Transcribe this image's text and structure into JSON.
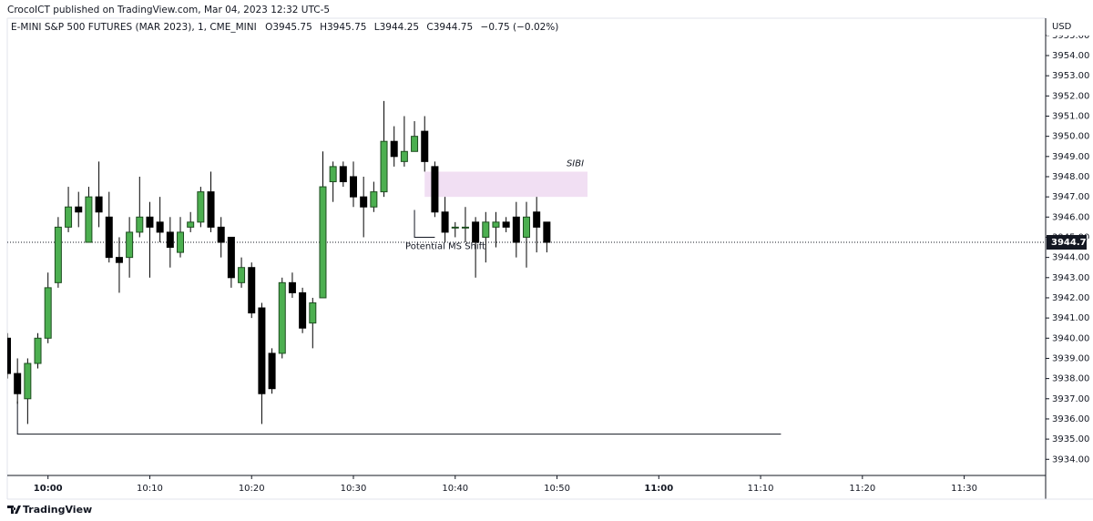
{
  "header": {
    "published": "CrocoICT published on TradingView.com, Mar 04, 2023 12:32 UTC-5",
    "symbol": "E-MINI S&P 500 FUTURES (MAR 2023), 1, CME_MINI",
    "ohlc_labels": [
      "O3945.75",
      "H3945.75",
      "L3944.25",
      "C3944.75",
      "−0.75 (−0.02%)"
    ]
  },
  "footer": {
    "brand": "TradingView"
  },
  "chart_data": {
    "type": "candlestick",
    "currency": "USD",
    "x": [
      "09:56",
      "09:57",
      "09:58",
      "09:59",
      "10:00",
      "10:01",
      "10:02",
      "10:03",
      "10:04",
      "10:05",
      "10:06",
      "10:07",
      "10:08",
      "10:09",
      "10:10",
      "10:11",
      "10:12",
      "10:13",
      "10:14",
      "10:15",
      "10:16",
      "10:17",
      "10:18",
      "10:19",
      "10:20",
      "10:21",
      "10:22",
      "10:23",
      "10:24",
      "10:25",
      "10:26",
      "10:27",
      "10:28",
      "10:29",
      "10:30",
      "10:31",
      "10:32",
      "10:33",
      "10:34",
      "10:35",
      "10:36",
      "10:37",
      "10:38",
      "10:39",
      "10:40",
      "10:41",
      "10:42",
      "10:43",
      "10:44",
      "10:45",
      "10:46",
      "10:47",
      "10:48",
      "10:49"
    ],
    "open": [
      3940.0,
      3938.25,
      3937.0,
      3938.75,
      3940.0,
      3942.75,
      3945.5,
      3946.5,
      3944.75,
      3947.0,
      3946.0,
      3944.0,
      3944.0,
      3945.25,
      3946.0,
      3945.75,
      3945.25,
      3944.25,
      3945.5,
      3945.75,
      3947.25,
      3945.5,
      3945.0,
      3942.75,
      3943.5,
      3941.5,
      3939.25,
      3939.25,
      3942.75,
      3942.25,
      3940.75,
      3942.0,
      3947.75,
      3948.5,
      3948.0,
      3947.0,
      3946.5,
      3947.25,
      3949.75,
      3948.75,
      3949.25,
      3950.25,
      3948.5,
      3946.25,
      3945.5,
      3945.5,
      3945.75,
      3945.0,
      3945.5,
      3945.75,
      3946.0,
      3945.0,
      3946.25,
      3945.75
    ],
    "high": [
      3940.25,
      3939.0,
      3939.0,
      3940.25,
      3943.25,
      3946.0,
      3947.5,
      3947.25,
      3947.5,
      3948.75,
      3947.25,
      3945.0,
      3946.0,
      3948.0,
      3946.75,
      3947.0,
      3946.0,
      3946.0,
      3946.25,
      3947.5,
      3948.25,
      3946.0,
      3945.0,
      3944.0,
      3943.75,
      3941.75,
      3939.5,
      3943.0,
      3943.25,
      3942.5,
      3942.0,
      3949.25,
      3948.75,
      3948.75,
      3948.75,
      3948.0,
      3947.75,
      3951.75,
      3950.5,
      3951.0,
      3950.75,
      3951.0,
      3948.75,
      3947.0,
      3945.75,
      3946.5,
      3946.0,
      3946.25,
      3946.25,
      3946.0,
      3946.75,
      3946.75,
      3947.0,
      3945.75
    ],
    "low": [
      3938.0,
      3936.75,
      3935.75,
      3938.5,
      3939.75,
      3942.5,
      3945.25,
      3945.5,
      3944.75,
      3945.5,
      3943.75,
      3942.25,
      3943.0,
      3945.0,
      3943.0,
      3944.75,
      3943.5,
      3944.0,
      3945.25,
      3945.5,
      3945.25,
      3944.0,
      3942.5,
      3942.5,
      3941.0,
      3935.75,
      3937.25,
      3939.0,
      3942.0,
      3940.25,
      3939.5,
      3942.0,
      3946.75,
      3947.5,
      3946.5,
      3945.0,
      3946.25,
      3947.0,
      3948.5,
      3948.5,
      3949.25,
      3948.25,
      3946.0,
      3944.75,
      3945.0,
      3944.75,
      3943.0,
      3943.75,
      3944.5,
      3945.25,
      3944.0,
      3943.5,
      3944.25,
      3944.25
    ],
    "close": [
      3938.25,
      3937.25,
      3938.75,
      3940.0,
      3942.5,
      3945.5,
      3946.5,
      3946.25,
      3947.0,
      3946.25,
      3944.0,
      3943.75,
      3945.25,
      3946.0,
      3945.5,
      3945.25,
      3944.5,
      3945.25,
      3945.75,
      3947.25,
      3945.5,
      3944.75,
      3943.0,
      3943.5,
      3941.25,
      3937.25,
      3937.5,
      3942.75,
      3942.25,
      3940.5,
      3941.75,
      3947.5,
      3948.5,
      3947.75,
      3947.0,
      3946.5,
      3947.25,
      3949.75,
      3949.0,
      3949.25,
      3950.0,
      3948.75,
      3946.25,
      3945.25,
      3945.5,
      3945.5,
      3944.75,
      3945.75,
      3945.75,
      3945.5,
      3944.75,
      3946.0,
      3945.5,
      3944.75
    ],
    "up_color": "#4caf50",
    "up_border": "#1e4d20",
    "down_color": "#000000",
    "wick_color": "#000000",
    "xlim": [
      "09:56",
      "11:38"
    ],
    "xticks": [
      "10:00",
      "10:10",
      "10:20",
      "10:30",
      "10:40",
      "10:50",
      "11:00",
      "11:10",
      "11:20",
      "11:30"
    ],
    "ylim": [
      3933.2,
      3955.85
    ],
    "yticks": [
      {
        "value": 3934,
        "label": "3934.00"
      },
      {
        "value": 3935,
        "label": "3935.00"
      },
      {
        "value": 3936,
        "label": "3936.00"
      },
      {
        "value": 3937,
        "label": "3937.00"
      },
      {
        "value": 3938,
        "label": "3938.00"
      },
      {
        "value": 3939,
        "label": "3939.00"
      },
      {
        "value": 3940,
        "label": "3940.00"
      },
      {
        "value": 3941,
        "label": "3941.00"
      },
      {
        "value": 3942,
        "label": "3942.00"
      },
      {
        "value": 3943,
        "label": "3943.00"
      },
      {
        "value": 3944,
        "label": "3944.00"
      },
      {
        "value": 3945,
        "label": "3945.00"
      },
      {
        "value": 3946,
        "label": "3946.00"
      },
      {
        "value": 3947,
        "label": "3947.00"
      },
      {
        "value": 3948,
        "label": "3948.00"
      },
      {
        "value": 3949,
        "label": "3949.00"
      },
      {
        "value": 3950,
        "label": "3950.00"
      },
      {
        "value": 3951,
        "label": "3951.00"
      },
      {
        "value": 3952,
        "label": "3952.00"
      },
      {
        "value": 3953,
        "label": "3953.00"
      },
      {
        "value": 3954,
        "label": "3954.00"
      },
      {
        "value": 3955,
        "label": "3955.00"
      }
    ],
    "last_price": 3944.75,
    "grid": false,
    "sibi_zone": {
      "label": "SIBI",
      "x": [
        "10:37",
        "10:53"
      ],
      "y": [
        3947.0,
        3948.25
      ],
      "color": "#f1dff3"
    },
    "ms_shift": {
      "label": "Potential MS Shift",
      "x": [
        "10:36",
        "10:38"
      ],
      "y": 3945.0
    },
    "low_line": {
      "x": [
        "09:57",
        "11:12"
      ],
      "y": 3935.25
    }
  }
}
